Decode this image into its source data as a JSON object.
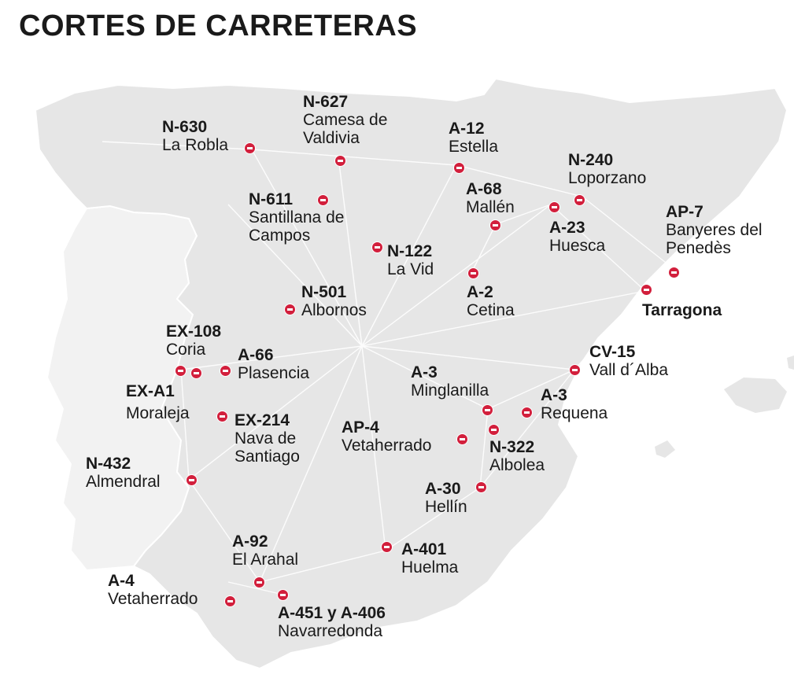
{
  "title": "CORTES DE CARRETERAS",
  "colors": {
    "marker": "#d21f3c",
    "land_spain": "#e6e6e6",
    "land_portugal": "#f2f2f2",
    "roads": "#ffffff"
  },
  "icon": "no-entry-icon",
  "closures": [
    {
      "id": "n630",
      "road": "N-630",
      "place": "La Robla"
    },
    {
      "id": "n627",
      "road": "N-627",
      "place": "Camesa de Valdivia"
    },
    {
      "id": "a12",
      "road": "A-12",
      "place": "Estella"
    },
    {
      "id": "n240",
      "road": "N-240",
      "place": "Loporzano"
    },
    {
      "id": "n611",
      "road": "N-611",
      "place": "Santillana de Campos"
    },
    {
      "id": "a68",
      "road": "A-68",
      "place": "Mallén"
    },
    {
      "id": "ap7",
      "road": "AP-7",
      "place": "Banyeres del Penedès"
    },
    {
      "id": "a23",
      "road": "A-23",
      "place": "Huesca"
    },
    {
      "id": "n122",
      "road": "N-122",
      "place": "La Vid"
    },
    {
      "id": "a2",
      "road": "A-2",
      "place": "Cetina"
    },
    {
      "id": "tarragona",
      "road": "Tarragona",
      "place": ""
    },
    {
      "id": "n501",
      "road": "N-501",
      "place": "Albornos"
    },
    {
      "id": "ex108",
      "road": "EX-108",
      "place": "Coria"
    },
    {
      "id": "a66",
      "road": "A-66",
      "place": "Plasencia"
    },
    {
      "id": "cv15",
      "road": "CV-15",
      "place": "Vall d´Alba"
    },
    {
      "id": "a3m",
      "road": "A-3",
      "place": "Minglanilla"
    },
    {
      "id": "exa1",
      "road": "EX-A1",
      "place": "Moraleja"
    },
    {
      "id": "a3r",
      "road": "A-3",
      "place": "Requena"
    },
    {
      "id": "ex214",
      "road": "EX-214",
      "place": "Nava de Santiago"
    },
    {
      "id": "ap4",
      "road": "AP-4",
      "place": "Vetaherrado"
    },
    {
      "id": "n322",
      "road": "N-322",
      "place": "Albolea"
    },
    {
      "id": "n432",
      "road": "N-432",
      "place": "Almendral"
    },
    {
      "id": "a30",
      "road": "A-30",
      "place": "Hellín"
    },
    {
      "id": "a92",
      "road": "A-92",
      "place": "El Arahal"
    },
    {
      "id": "a401",
      "road": "A-401",
      "place": "Huelma"
    },
    {
      "id": "a4",
      "road": "A-4",
      "place": "Vetaherrado"
    },
    {
      "id": "a451",
      "road": "A-451 y A-406",
      "place": "Navarredonda"
    }
  ]
}
